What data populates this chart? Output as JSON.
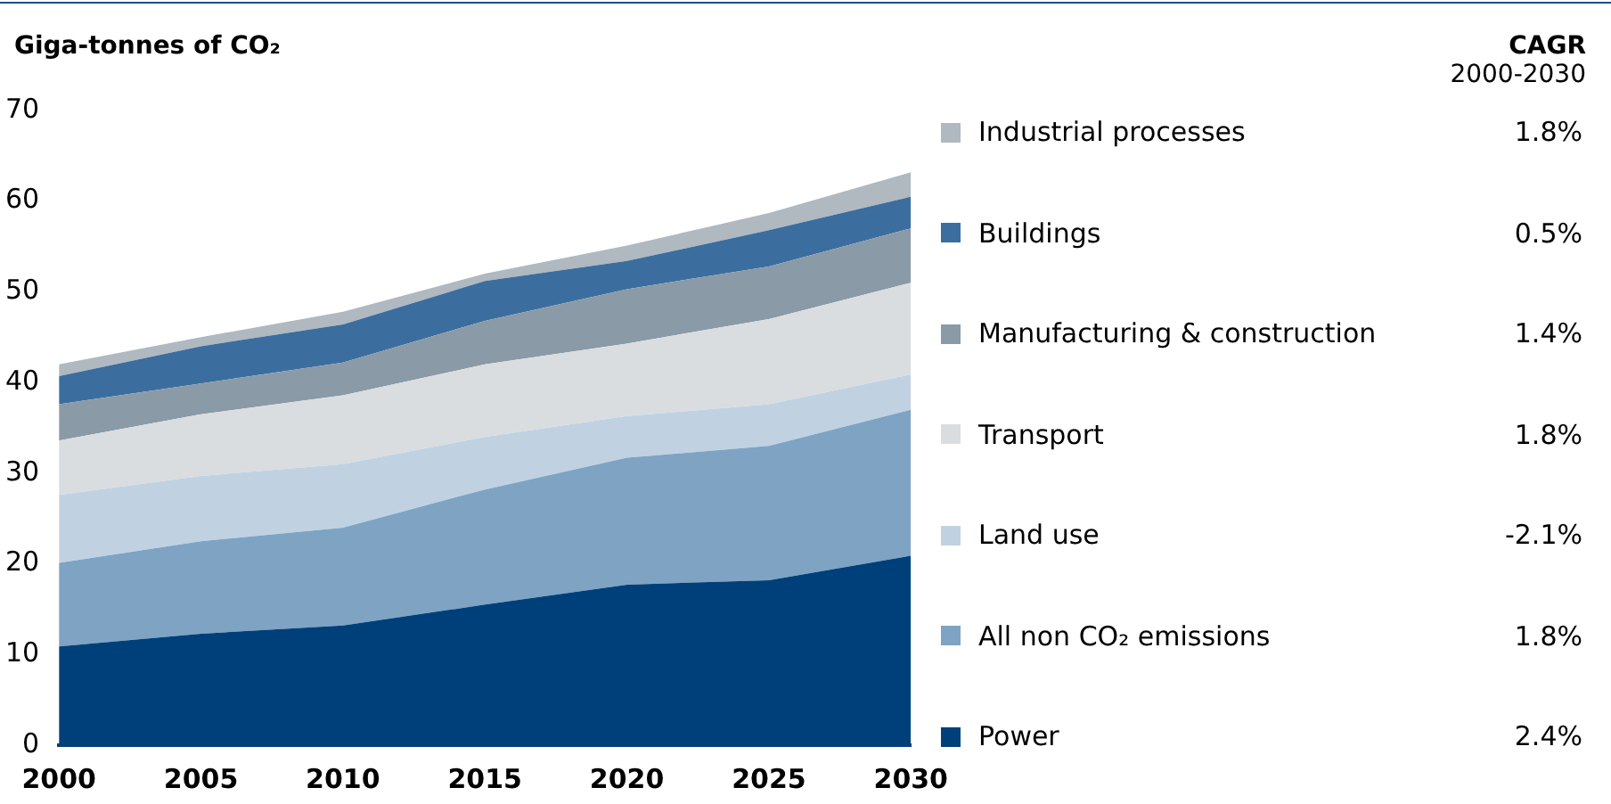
{
  "chart_data": {
    "type": "area",
    "stacked": true,
    "ylabel": "Giga-tonnes of CO₂",
    "legend_title": "CAGR\n2000-2030",
    "legend": "right",
    "x": [
      2000,
      2005,
      2010,
      2015,
      2020,
      2025,
      2030
    ],
    "xlim": [
      2000,
      2030
    ],
    "xticks": [
      2000,
      2005,
      2010,
      2015,
      2020,
      2025,
      2030
    ],
    "ylim": [
      0,
      70
    ],
    "yticks": [
      0,
      10,
      20,
      30,
      40,
      50,
      60,
      70
    ],
    "grid": false,
    "series": [
      {
        "name": "Power",
        "color": "#00407a",
        "values": [
          10.9,
          12.3,
          13.2,
          15.5,
          17.7,
          18.2,
          20.9
        ]
      },
      {
        "name": "All non CO₂ emissions",
        "color": "#7fa3c3",
        "values": [
          9.2,
          10.2,
          10.8,
          12.7,
          14.0,
          14.8,
          16.1
        ]
      },
      {
        "name": "Land use",
        "color": "#c0d2e2",
        "values": [
          7.5,
          7.2,
          7.0,
          5.8,
          4.6,
          4.6,
          3.9
        ]
      },
      {
        "name": "Transport",
        "color": "#d9dde0",
        "values": [
          6.0,
          6.8,
          7.6,
          8.0,
          8.0,
          9.4,
          10.1
        ]
      },
      {
        "name": "Manufacturing & construction",
        "color": "#8a9aa6",
        "values": [
          4.0,
          3.4,
          3.6,
          4.8,
          6.0,
          5.8,
          6.0
        ]
      },
      {
        "name": "Buildings",
        "color": "#3b6e9e",
        "values": [
          3.1,
          4.1,
          4.2,
          4.4,
          3.1,
          4.0,
          3.5
        ]
      },
      {
        "name": "Industrial processes",
        "color": "#b0b8c0",
        "values": [
          1.3,
          1.0,
          1.4,
          0.8,
          1.7,
          1.9,
          2.7
        ]
      }
    ],
    "annotations": [
      "2.4%",
      "1.8%",
      "-2.1%",
      "1.8%",
      "1.4%",
      "0.5%",
      "1.8%"
    ]
  }
}
